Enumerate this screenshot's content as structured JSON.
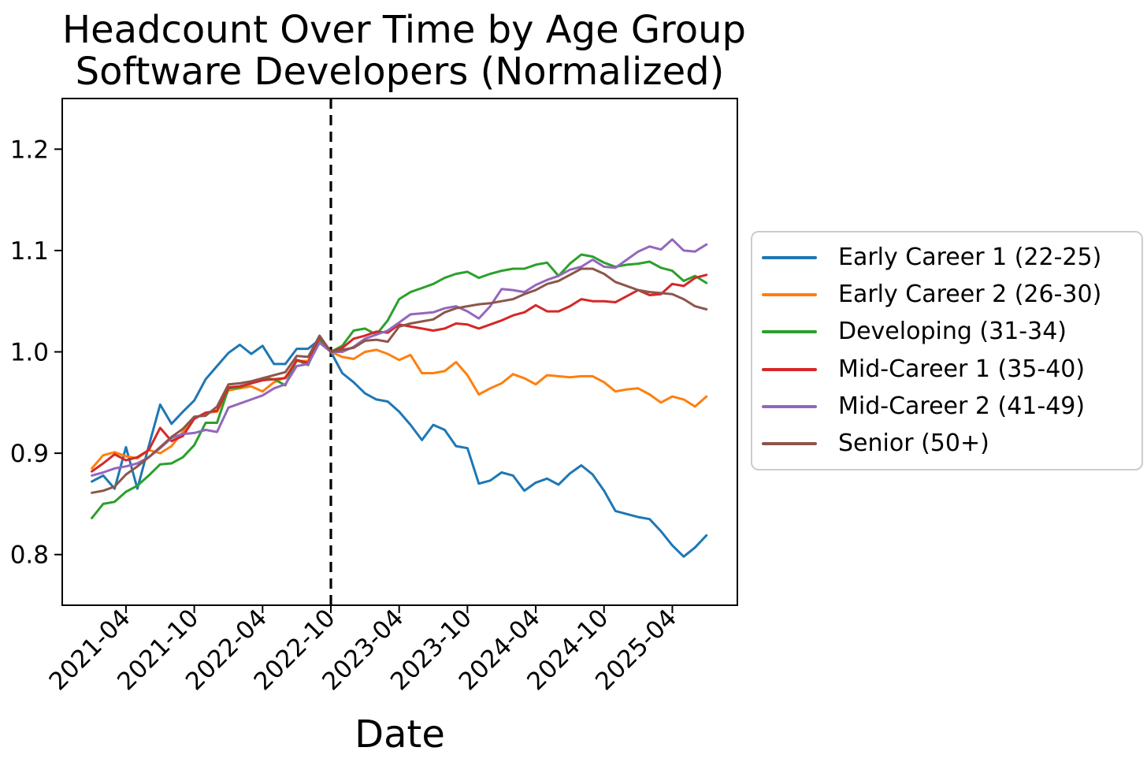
{
  "chart_data": {
    "type": "line",
    "title": "Headcount Over Time by Age Group",
    "subtitle": "Software Developers (Normalized)",
    "xlabel": "Date",
    "ylabel": "",
    "grid": false,
    "legend_position": "right",
    "ylim": [
      0.75,
      1.25
    ],
    "yticks": [
      0.8,
      0.9,
      1.0,
      1.1,
      1.2
    ],
    "ytick_labels": [
      "0.8",
      "0.9",
      "1.0",
      "1.1",
      "1.2"
    ],
    "xtick_labels": [
      "2021-04",
      "2021-10",
      "2022-04",
      "2022-10",
      "2023-04",
      "2023-10",
      "2024-04",
      "2024-10",
      "2025-04"
    ],
    "xtick_month_indices": [
      3,
      9,
      15,
      21,
      27,
      33,
      39,
      45,
      51
    ],
    "vline": {
      "date": "2022-10",
      "month_index": 21,
      "style": "dashed",
      "color": "#000000"
    },
    "x": [
      "2021-01",
      "2021-02",
      "2021-03",
      "2021-04",
      "2021-05",
      "2021-06",
      "2021-07",
      "2021-08",
      "2021-09",
      "2021-10",
      "2021-11",
      "2021-12",
      "2022-01",
      "2022-02",
      "2022-03",
      "2022-04",
      "2022-05",
      "2022-06",
      "2022-07",
      "2022-08",
      "2022-09",
      "2022-10",
      "2022-11",
      "2022-12",
      "2023-01",
      "2023-02",
      "2023-03",
      "2023-04",
      "2023-05",
      "2023-06",
      "2023-07",
      "2023-08",
      "2023-09",
      "2023-10",
      "2023-11",
      "2023-12",
      "2024-01",
      "2024-02",
      "2024-03",
      "2024-04",
      "2024-05",
      "2024-06",
      "2024-07",
      "2024-08",
      "2024-09",
      "2024-10",
      "2024-11",
      "2024-12",
      "2025-01",
      "2025-02",
      "2025-03",
      "2025-04",
      "2025-05",
      "2025-06",
      "2025-07"
    ],
    "series": [
      {
        "name": "Early Career 1 (22-25)",
        "color": "#1f77b4",
        "values": [
          0.872,
          0.878,
          0.865,
          0.906,
          0.865,
          0.907,
          0.948,
          0.929,
          0.941,
          0.952,
          0.973,
          0.986,
          0.999,
          1.007,
          0.998,
          1.006,
          0.988,
          0.988,
          1.003,
          1.003,
          1.012,
          1.0,
          0.979,
          0.97,
          0.959,
          0.953,
          0.951,
          0.941,
          0.928,
          0.913,
          0.928,
          0.923,
          0.907,
          0.905,
          0.87,
          0.873,
          0.881,
          0.878,
          0.863,
          0.871,
          0.875,
          0.869,
          0.88,
          0.888,
          0.879,
          0.863,
          0.843,
          0.84,
          0.837,
          0.835,
          0.823,
          0.809,
          0.798,
          0.807,
          0.819
        ]
      },
      {
        "name": "Early Career 2 (26-30)",
        "color": "#ff7f0e",
        "values": [
          0.885,
          0.898,
          0.901,
          0.897,
          0.895,
          0.903,
          0.9,
          0.907,
          0.921,
          0.934,
          0.94,
          0.941,
          0.962,
          0.964,
          0.966,
          0.961,
          0.97,
          0.975,
          0.991,
          0.991,
          1.013,
          1.0,
          0.995,
          0.993,
          1.0,
          1.002,
          0.998,
          0.992,
          0.997,
          0.979,
          0.979,
          0.981,
          0.99,
          0.977,
          0.958,
          0.964,
          0.969,
          0.978,
          0.974,
          0.968,
          0.977,
          0.976,
          0.975,
          0.976,
          0.976,
          0.97,
          0.961,
          0.963,
          0.964,
          0.958,
          0.95,
          0.956,
          0.953,
          0.946,
          0.956
        ]
      },
      {
        "name": "Developing (31-34)",
        "color": "#2ca02c",
        "values": [
          0.836,
          0.85,
          0.852,
          0.862,
          0.868,
          0.878,
          0.889,
          0.89,
          0.896,
          0.908,
          0.93,
          0.93,
          0.964,
          0.965,
          0.969,
          0.974,
          0.973,
          0.967,
          0.992,
          0.987,
          1.012,
          1.0,
          1.006,
          1.021,
          1.023,
          1.017,
          1.031,
          1.052,
          1.059,
          1.063,
          1.067,
          1.073,
          1.077,
          1.079,
          1.073,
          1.077,
          1.08,
          1.082,
          1.082,
          1.086,
          1.088,
          1.075,
          1.087,
          1.096,
          1.094,
          1.088,
          1.084,
          1.086,
          1.087,
          1.089,
          1.083,
          1.08,
          1.07,
          1.075,
          1.068
        ]
      },
      {
        "name": "Mid-Career 1 (35-40)",
        "color": "#d62728",
        "values": [
          0.882,
          0.89,
          0.899,
          0.893,
          0.896,
          0.903,
          0.925,
          0.912,
          0.917,
          0.934,
          0.94,
          0.942,
          0.965,
          0.966,
          0.969,
          0.972,
          0.973,
          0.974,
          0.992,
          0.989,
          1.015,
          1.0,
          1.004,
          1.013,
          1.016,
          1.02,
          1.019,
          1.027,
          1.025,
          1.023,
          1.021,
          1.023,
          1.028,
          1.027,
          1.023,
          1.027,
          1.031,
          1.036,
          1.039,
          1.046,
          1.04,
          1.04,
          1.045,
          1.052,
          1.05,
          1.05,
          1.049,
          1.055,
          1.061,
          1.056,
          1.057,
          1.067,
          1.065,
          1.073,
          1.076
        ]
      },
      {
        "name": "Mid-Career 2 (41-49)",
        "color": "#9467bd",
        "values": [
          0.878,
          0.881,
          0.885,
          0.887,
          0.89,
          0.896,
          0.905,
          0.915,
          0.919,
          0.92,
          0.923,
          0.921,
          0.945,
          0.949,
          0.953,
          0.957,
          0.964,
          0.968,
          0.986,
          0.988,
          1.009,
          1.0,
          1.0,
          1.005,
          1.013,
          1.017,
          1.021,
          1.029,
          1.037,
          1.038,
          1.039,
          1.043,
          1.045,
          1.04,
          1.033,
          1.045,
          1.062,
          1.061,
          1.059,
          1.066,
          1.071,
          1.075,
          1.081,
          1.084,
          1.091,
          1.084,
          1.083,
          1.091,
          1.099,
          1.104,
          1.101,
          1.111,
          1.1,
          1.099,
          1.106
        ]
      },
      {
        "name": "Senior (50+)",
        "color": "#8c564b",
        "values": [
          0.861,
          0.863,
          0.867,
          0.879,
          0.887,
          0.896,
          0.906,
          0.916,
          0.924,
          0.936,
          0.937,
          0.946,
          0.968,
          0.969,
          0.971,
          0.974,
          0.977,
          0.98,
          0.996,
          0.995,
          1.016,
          1.0,
          1.002,
          1.004,
          1.011,
          1.012,
          1.01,
          1.025,
          1.028,
          1.03,
          1.032,
          1.039,
          1.043,
          1.045,
          1.047,
          1.048,
          1.05,
          1.052,
          1.057,
          1.061,
          1.067,
          1.07,
          1.076,
          1.082,
          1.082,
          1.077,
          1.069,
          1.065,
          1.061,
          1.059,
          1.058,
          1.057,
          1.052,
          1.045,
          1.042
        ]
      }
    ]
  }
}
